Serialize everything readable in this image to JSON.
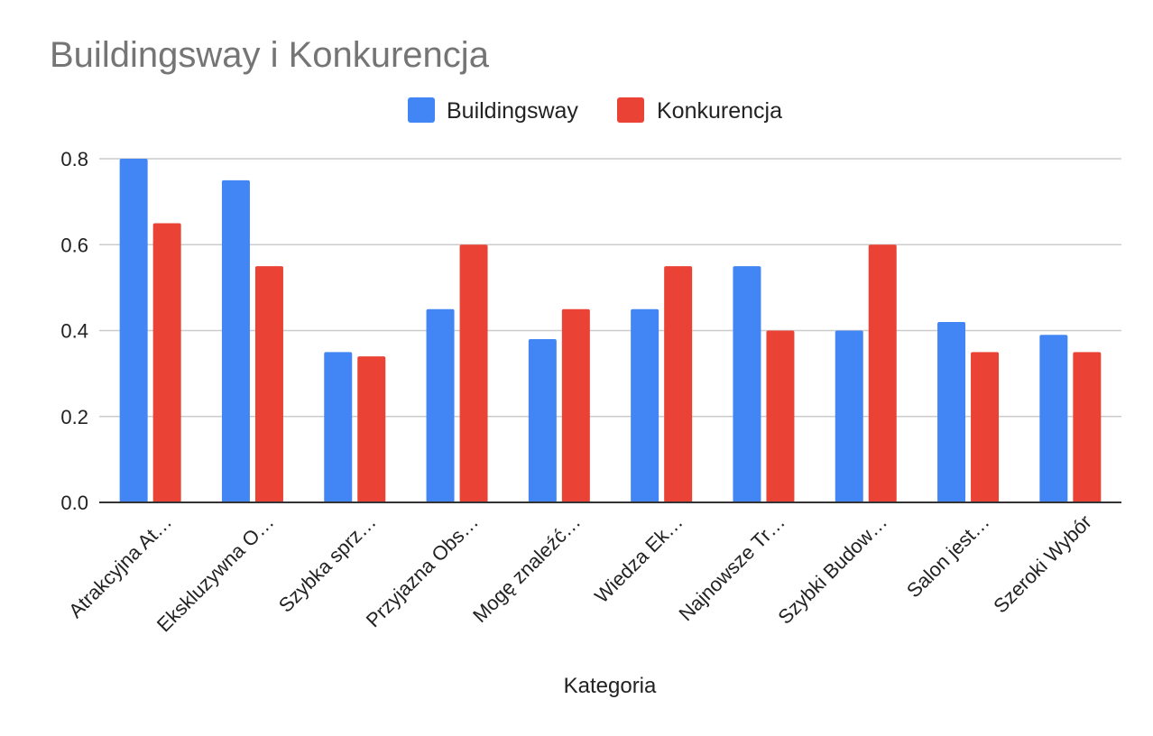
{
  "chart_data": {
    "type": "bar",
    "title": "Buildingsway i Konkurencja",
    "xlabel": "Kategoria",
    "ylabel": "",
    "ylim": [
      0,
      0.8
    ],
    "yticks": [
      "0.0",
      "0.2",
      "0.4",
      "0.6",
      "0.8"
    ],
    "grid": true,
    "legend_position": "top",
    "categories": [
      "Atrakcyjna At…",
      "Ekskluzywna O…",
      "Szybka sprz…",
      "Przyjazna Obs…",
      "Mogę znaleźć…",
      "Wiedza Ek…",
      "Najnowsze Tr…",
      "Szybki Budow…",
      "Salon jest…",
      "Szeroki Wybór"
    ],
    "series": [
      {
        "name": "Buildingsway",
        "color": "#4285f4",
        "values": [
          0.8,
          0.75,
          0.35,
          0.45,
          0.38,
          0.45,
          0.55,
          0.4,
          0.42,
          0.39
        ]
      },
      {
        "name": "Konkurencja",
        "color": "#ea4335",
        "values": [
          0.65,
          0.55,
          0.34,
          0.6,
          0.45,
          0.55,
          0.4,
          0.6,
          0.35,
          0.35
        ]
      }
    ]
  }
}
